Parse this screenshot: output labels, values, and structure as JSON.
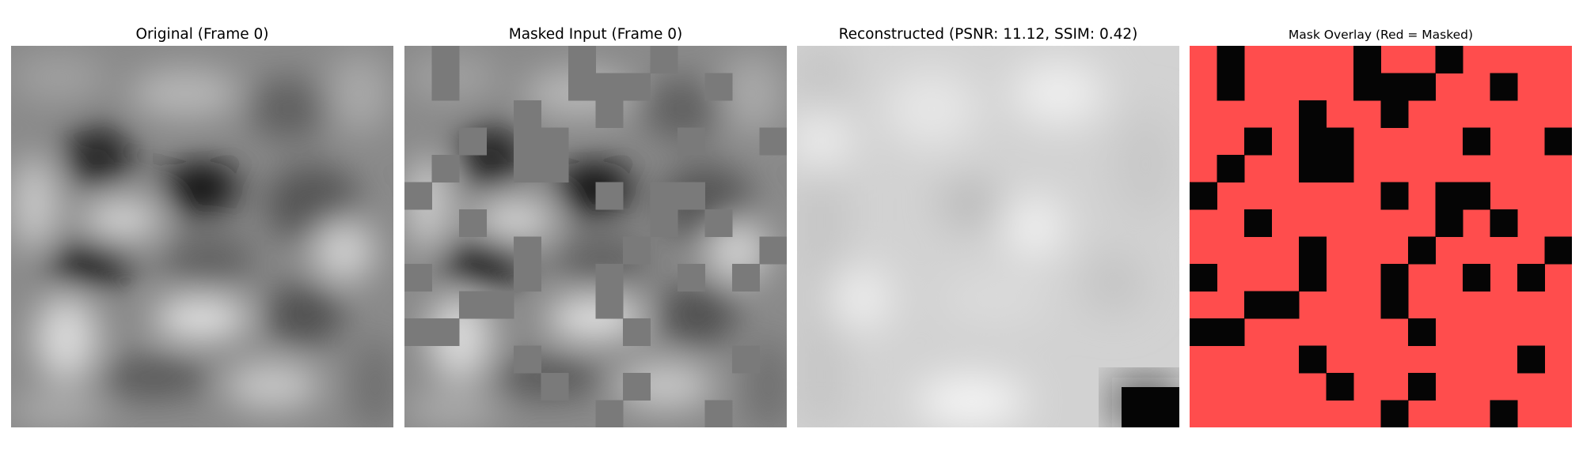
{
  "panels": [
    {
      "title": "Original (Frame 0)",
      "image": "grayscale smooth noise texture"
    },
    {
      "title": "Masked Input (Frame 0)",
      "image": "noise texture with gray masked patches"
    },
    {
      "title": "Reconstructed (PSNR: 11.12, SSIM: 0.42)",
      "image": "blurry light gray reconstruction"
    },
    {
      "title": "Mask Overlay (Red = Masked)",
      "image": "red mask grid with black unmasked patches"
    }
  ],
  "colors": {
    "mask_red": "#ff4d4d",
    "mask_black": "#050505",
    "mask_gray": "#7a7a7a"
  },
  "mask": {
    "grid": 14,
    "unmasked_cells": [
      [
        0,
        1
      ],
      [
        0,
        6
      ],
      [
        0,
        9
      ],
      [
        1,
        1
      ],
      [
        1,
        6
      ],
      [
        1,
        7
      ],
      [
        1,
        8
      ],
      [
        1,
        11
      ],
      [
        2,
        4
      ],
      [
        2,
        7
      ],
      [
        3,
        2
      ],
      [
        3,
        4
      ],
      [
        3,
        5
      ],
      [
        3,
        10
      ],
      [
        3,
        13
      ],
      [
        4,
        1
      ],
      [
        4,
        4
      ],
      [
        4,
        5
      ],
      [
        5,
        0
      ],
      [
        5,
        7
      ],
      [
        5,
        9
      ],
      [
        5,
        10
      ],
      [
        6,
        2
      ],
      [
        6,
        9
      ],
      [
        6,
        11
      ],
      [
        7,
        4
      ],
      [
        7,
        8
      ],
      [
        7,
        13
      ],
      [
        8,
        0
      ],
      [
        8,
        4
      ],
      [
        8,
        7
      ],
      [
        8,
        10
      ],
      [
        8,
        12
      ],
      [
        9,
        2
      ],
      [
        9,
        3
      ],
      [
        9,
        7
      ],
      [
        10,
        0
      ],
      [
        10,
        1
      ],
      [
        10,
        8
      ],
      [
        11,
        4
      ],
      [
        11,
        12
      ],
      [
        12,
        5
      ],
      [
        12,
        8
      ],
      [
        13,
        7
      ],
      [
        13,
        11
      ]
    ]
  }
}
